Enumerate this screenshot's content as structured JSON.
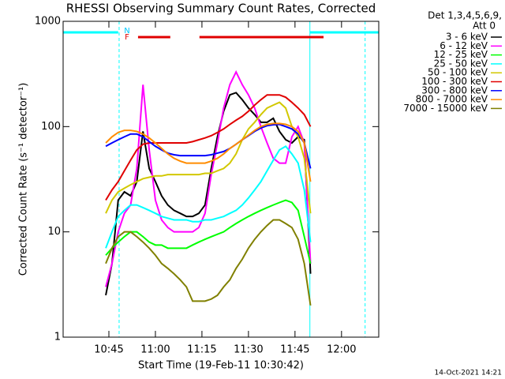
{
  "chart_data": {
    "type": "line",
    "title": "RHESSI Observing Summary Count Rates, Corrected",
    "xlabel": "Start Time (19-Feb-11 10:30:42)",
    "ylabel": "Corrected Count Rate (s⁻¹ detector⁻¹)",
    "legend_header": [
      "Det 1,3,4,5,6,9,",
      "Att 0"
    ],
    "footer": "14-Oct-2021 14:21",
    "annotations": [
      "N",
      "F"
    ],
    "log_y": true,
    "xlim": [
      630.25,
      732
    ],
    "ylim": [
      1,
      1000
    ],
    "xticks": [
      {
        "value": 645,
        "label": "10:45"
      },
      {
        "value": 660,
        "label": "11:00"
      },
      {
        "value": 675,
        "label": "11:15"
      },
      {
        "value": 690,
        "label": "11:30"
      },
      {
        "value": 705,
        "label": "11:45"
      },
      {
        "value": 720,
        "label": "12:00"
      }
    ],
    "yticks": [
      1,
      10,
      100,
      1000
    ],
    "markers": {
      "top_lines": [
        [
          630.25,
          648.0
        ],
        [
          709.8,
          732
        ]
      ],
      "vlines_solid": [
        630.25,
        709.8
      ],
      "vlines_dashed": [
        648.3,
        727.6
      ],
      "flare_bars": [
        [
          654.4,
          664.8
        ],
        [
          674.2,
          714.2
        ]
      ]
    },
    "x": [
      644,
      646,
      648,
      650,
      652,
      654,
      656,
      658,
      660,
      662,
      664,
      666,
      668,
      670,
      672,
      674,
      676,
      678,
      680,
      682,
      684,
      686,
      688,
      690,
      692,
      694,
      696,
      698,
      700,
      702,
      704,
      706,
      708,
      710
    ],
    "series": [
      {
        "name": "3 - 6 keV",
        "color": "#000000",
        "values": [
          2.5,
          5,
          20,
          24,
          22,
          30,
          90,
          40,
          30,
          22,
          18,
          16,
          15,
          14,
          14,
          15,
          18,
          40,
          80,
          140,
          200,
          210,
          180,
          150,
          130,
          110,
          110,
          120,
          90,
          75,
          70,
          80,
          75,
          4
        ]
      },
      {
        "name": "6 - 12 keV",
        "color": "#ff00ff",
        "values": [
          3,
          5,
          10,
          15,
          18,
          40,
          250,
          60,
          20,
          13,
          11,
          10,
          10,
          10,
          10,
          11,
          15,
          35,
          70,
          150,
          250,
          330,
          250,
          200,
          150,
          100,
          70,
          50,
          45,
          45,
          80,
          100,
          70,
          5
        ]
      },
      {
        "name": "12 - 25 keV",
        "color": "#00ff00",
        "values": [
          6,
          7,
          8,
          9,
          10,
          10,
          9,
          8,
          7.5,
          7.5,
          7,
          7,
          7,
          7,
          7.5,
          8,
          8.5,
          9,
          9.5,
          10,
          11,
          12,
          13,
          14,
          15,
          16,
          17,
          18,
          19,
          20,
          19,
          16,
          9,
          5
        ]
      },
      {
        "name": "25 - 50 keV",
        "color": "#00ffff",
        "values": [
          7,
          10,
          14,
          16,
          18,
          18,
          17,
          16,
          15,
          14,
          13.5,
          13,
          13,
          13,
          12.5,
          12.5,
          13,
          13,
          13.5,
          14,
          15,
          16,
          18,
          21,
          25,
          30,
          38,
          48,
          60,
          65,
          55,
          45,
          25,
          8
        ]
      },
      {
        "name": "50 - 100 keV",
        "color": "#d2c800",
        "values": [
          15,
          20,
          24,
          26,
          28,
          30,
          32,
          33,
          34,
          34,
          35,
          35,
          35,
          35,
          35,
          35,
          36,
          36,
          38,
          40,
          45,
          55,
          75,
          95,
          110,
          130,
          150,
          160,
          170,
          150,
          100,
          80,
          50,
          15
        ]
      },
      {
        "name": "100 - 300 keV",
        "color": "#e00000",
        "values": [
          20,
          25,
          30,
          38,
          48,
          60,
          68,
          70,
          70,
          70,
          70,
          70,
          70,
          70,
          72,
          75,
          78,
          82,
          88,
          95,
          105,
          115,
          125,
          140,
          160,
          180,
          200,
          200,
          200,
          190,
          170,
          150,
          130,
          100
        ]
      },
      {
        "name": "300 - 800 keV",
        "color": "#0000ff",
        "values": [
          65,
          70,
          75,
          80,
          85,
          85,
          80,
          72,
          65,
          60,
          56,
          54,
          53,
          53,
          53,
          53,
          53,
          54,
          56,
          58,
          62,
          68,
          75,
          82,
          90,
          97,
          102,
          104,
          105,
          100,
          95,
          85,
          70,
          40
        ]
      },
      {
        "name": "800 - 7000 keV",
        "color": "#ff8c00",
        "values": [
          70,
          80,
          88,
          92,
          92,
          90,
          85,
          78,
          70,
          62,
          55,
          50,
          47,
          45,
          45,
          45,
          45,
          47,
          50,
          55,
          62,
          68,
          75,
          83,
          92,
          100,
          105,
          107,
          107,
          105,
          100,
          90,
          70,
          30
        ]
      },
      {
        "name": "7000 - 15000 keV",
        "color": "#808000",
        "values": [
          5,
          7,
          9,
          10,
          10,
          9,
          8,
          7,
          6,
          5,
          4.5,
          4,
          3.5,
          3,
          2.2,
          2.2,
          2.2,
          2.3,
          2.5,
          3,
          3.5,
          4.5,
          5.5,
          7,
          8.5,
          10,
          11.5,
          13,
          13,
          12,
          11,
          8.5,
          5,
          2
        ]
      }
    ]
  }
}
